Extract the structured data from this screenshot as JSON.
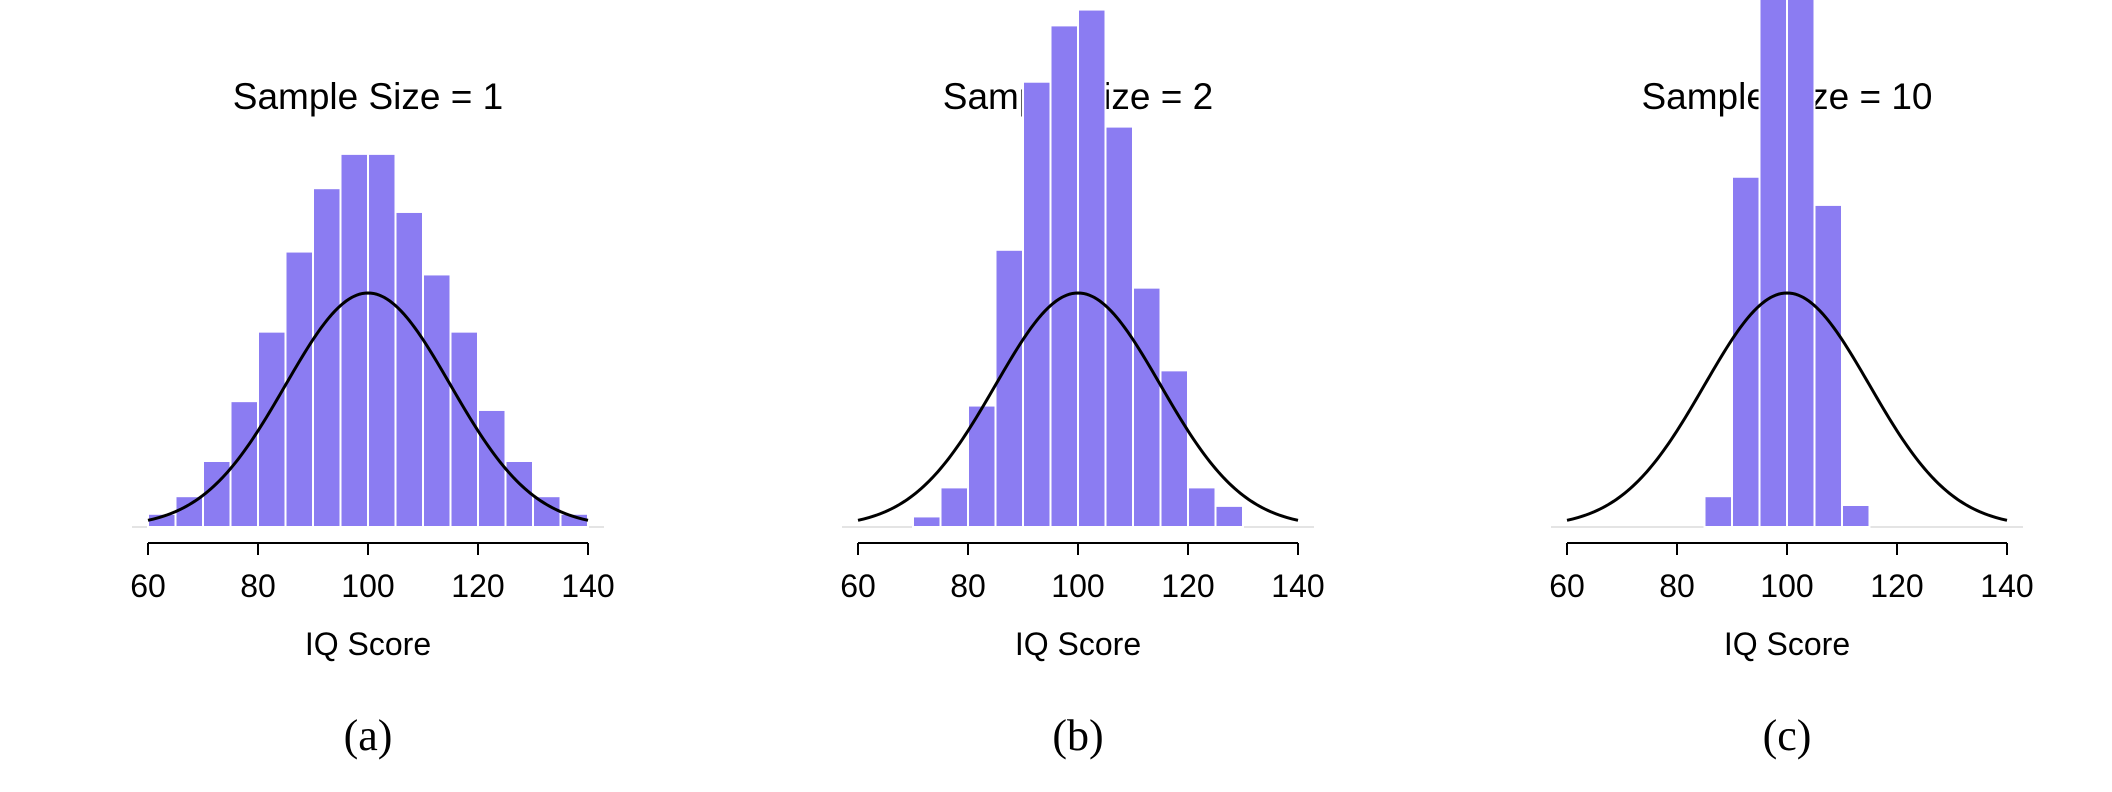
{
  "chart_data": [
    {
      "type": "bar",
      "panel": "(a)",
      "title": "Sample Size = 1",
      "xlabel": "IQ Score",
      "ylabel": "",
      "xlim": [
        60,
        140
      ],
      "xticks": [
        "60",
        "80",
        "100",
        "120",
        "140"
      ],
      "bin_width": 5,
      "bins": [
        [
          60,
          65
        ],
        [
          65,
          70
        ],
        [
          70,
          75
        ],
        [
          75,
          80
        ],
        [
          80,
          85
        ],
        [
          85,
          90
        ],
        [
          90,
          95
        ],
        [
          95,
          100
        ],
        [
          100,
          105
        ],
        [
          105,
          110
        ],
        [
          110,
          115
        ],
        [
          115,
          120
        ],
        [
          120,
          125
        ],
        [
          125,
          130
        ],
        [
          130,
          135
        ],
        [
          135,
          140
        ]
      ],
      "values": [
        0.0015,
        0.0035,
        0.0075,
        0.0143,
        0.0222,
        0.0313,
        0.0385,
        0.0424,
        0.0424,
        0.0358,
        0.0287,
        0.0222,
        0.0133,
        0.0075,
        0.0035,
        0.0015
      ],
      "curve": {
        "type": "normal",
        "mean": 100,
        "sd": 15
      },
      "bar_color": "#8b7cf2",
      "curve_color": "#000000"
    },
    {
      "type": "bar",
      "panel": "(b)",
      "title": "Sample Size = 2",
      "xlabel": "IQ Score",
      "ylabel": "",
      "xlim": [
        60,
        140
      ],
      "xticks": [
        "60",
        "80",
        "100",
        "120",
        "140"
      ],
      "bin_width": 5,
      "bins": [
        [
          70,
          75
        ],
        [
          75,
          80
        ],
        [
          80,
          85
        ],
        [
          85,
          90
        ],
        [
          90,
          95
        ],
        [
          95,
          100
        ],
        [
          100,
          105
        ],
        [
          105,
          110
        ],
        [
          110,
          115
        ],
        [
          115,
          120
        ],
        [
          120,
          125
        ],
        [
          125,
          130
        ]
      ],
      "values": [
        0.0012,
        0.0045,
        0.0138,
        0.0315,
        0.0506,
        0.057,
        0.0588,
        0.0455,
        0.0272,
        0.0178,
        0.0045,
        0.0024
      ],
      "curve": {
        "type": "normal",
        "mean": 100,
        "sd": 15
      },
      "bar_color": "#8b7cf2",
      "curve_color": "#000000"
    },
    {
      "type": "bar",
      "panel": "(c)",
      "title": "Sample Size = 10",
      "xlabel": "IQ Score",
      "ylabel": "",
      "xlim": [
        60,
        140
      ],
      "xticks": [
        "60",
        "80",
        "100",
        "120",
        "140"
      ],
      "bin_width": 5,
      "bins": [
        [
          85,
          90
        ],
        [
          90,
          95
        ],
        [
          95,
          100
        ],
        [
          100,
          105
        ],
        [
          105,
          110
        ],
        [
          110,
          115
        ]
      ],
      "values": [
        0.0035,
        0.0398,
        0.1155,
        0.1129,
        0.0366,
        0.0025
      ],
      "curve": {
        "type": "normal",
        "mean": 100,
        "sd": 15
      },
      "bar_color": "#8b7cf2",
      "curve_color": "#000000"
    }
  ]
}
